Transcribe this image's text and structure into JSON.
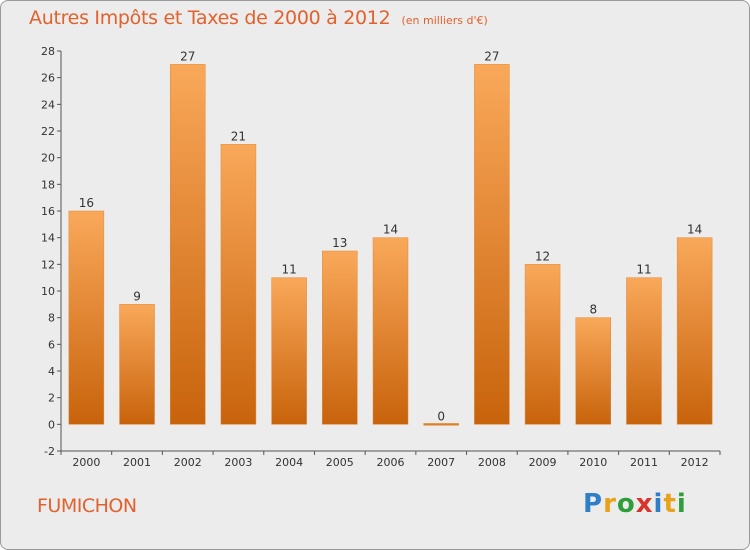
{
  "chart_data": {
    "type": "bar",
    "title": "Autres Impôts et Taxes de 2000 à 2012",
    "subtitle": "(en milliers d'€)",
    "categories": [
      "2000",
      "2001",
      "2002",
      "2003",
      "2004",
      "2005",
      "2006",
      "2007",
      "2008",
      "2009",
      "2010",
      "2011",
      "2012"
    ],
    "values": [
      16,
      9,
      27,
      21,
      11,
      13,
      14,
      0,
      27,
      12,
      8,
      11,
      14
    ],
    "data_labels": [
      "16",
      "9",
      "27",
      "21",
      "11",
      "13",
      "14",
      "0",
      "27",
      "12",
      "8",
      "11",
      "14"
    ],
    "ylim": [
      -2,
      28
    ],
    "yticks": [
      -2,
      0,
      2,
      4,
      6,
      8,
      10,
      12,
      14,
      16,
      18,
      20,
      22,
      24,
      26,
      28
    ],
    "xlabel": "",
    "ylabel": "",
    "grid": false,
    "colors": {
      "bar_light": "#f9a85a",
      "bar_dark": "#c8630c",
      "text": "#e2612c"
    }
  },
  "commune": "FUMICHON",
  "logo": {
    "text": "Proxiti",
    "letters": [
      {
        "ch": "P",
        "color": "#2e7fc8"
      },
      {
        "ch": "r",
        "color": "#e8a21b"
      },
      {
        "ch": "o",
        "color": "#2e9e3a"
      },
      {
        "ch": "x",
        "color": "#d8342a"
      },
      {
        "ch": "i",
        "color": "#2e7fc8"
      },
      {
        "ch": "t",
        "color": "#e8a21b"
      },
      {
        "ch": "i",
        "color": "#2e9e3a"
      }
    ]
  }
}
